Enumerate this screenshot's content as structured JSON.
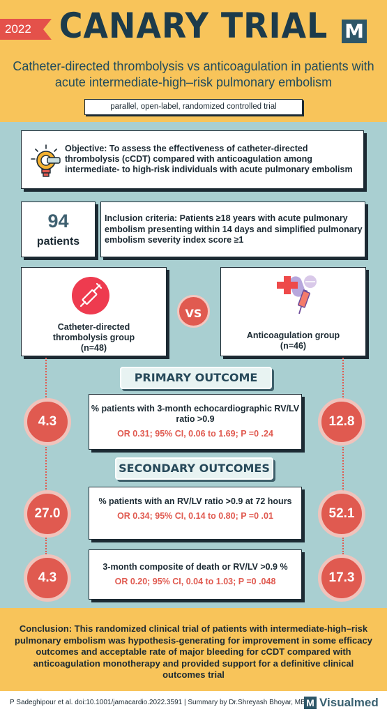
{
  "header": {
    "year": "2022",
    "title": "CANARY TRIAL",
    "logo_letter": "M",
    "subtitle_line1": "Catheter-directed thrombolysis vs anticoagulation in patients with",
    "subtitle_line2": "acute intermediate-high–risk pulmonary embolism",
    "design": "parallel, open-label, randomized controlled trial"
  },
  "objective": {
    "text": "Objective: To assess the effectiveness of catheter-directed thrombolysis (cCDT) compared with anticoagulation among intermediate- to high-risk individuals with acute pulmonary embolism",
    "icon": "lightbulb-icon"
  },
  "patients": {
    "count": "94",
    "label": "patients"
  },
  "inclusion": {
    "text": "Inclusion criteria: Patients ≥18 years with acute pulmonary embolism presenting within 14 days and simplified pulmonary embolism severity index score ≥1"
  },
  "groups": {
    "a": {
      "name_line1": "Catheter-directed",
      "name_line2": "thrombolysis group",
      "n": "(n=48)",
      "icon": "syringe-icon"
    },
    "b": {
      "name_line1": "Anticoagulation group",
      "n": "(n=46)",
      "icon": "medication-icon"
    },
    "vs": "VS"
  },
  "primary_outcome": {
    "heading": "PRIMARY OUTCOME",
    "title": "% patients with 3-month echocardiographic RV/LV ratio >0.9",
    "stats": "OR 0.31; 95% CI, 0.06 to 1.69; P =0 .24",
    "value_a": "4.3",
    "value_b": "12.8"
  },
  "secondary_outcomes": {
    "heading": "SECONDARY OUTCOMES",
    "items": [
      {
        "title": "% patients with an RV/LV ratio >0.9 at 72 hours",
        "stats": "OR 0.34; 95% CI, 0.14 to 0.80; P =0 .01",
        "value_a": "27.0",
        "value_b": "52.1"
      },
      {
        "title": "3-month composite of death or RV/LV >0.9 %",
        "stats": "OR 0.20; 95% CI, 0.04 to 1.03; P =0 .048",
        "value_a": "4.3",
        "value_b": "17.3"
      }
    ]
  },
  "conclusion": "Conclusion: This randomized clinical trial of patients with intermediate-high–risk pulmonary embolism was hypothesis-generating for improvement in some efficacy outcomes and acceptable rate of major bleeding for cCDT compared with anticoagulation monotherapy and provided support for a definitive clinical outcomes trial",
  "footer": {
    "citation": "P Sadeghipour et al.   doi:10.1001/jamacardio.2022.3591  |  Summary by Dr.Shreyash Bhoyar, MBBS",
    "logo_letter": "M",
    "brand": "Visualmed"
  },
  "colors": {
    "header_bg": "#f8c45a",
    "body_bg": "#a9cfd1",
    "accent_red": "#e05a50",
    "dark_teal": "#2d5668"
  }
}
